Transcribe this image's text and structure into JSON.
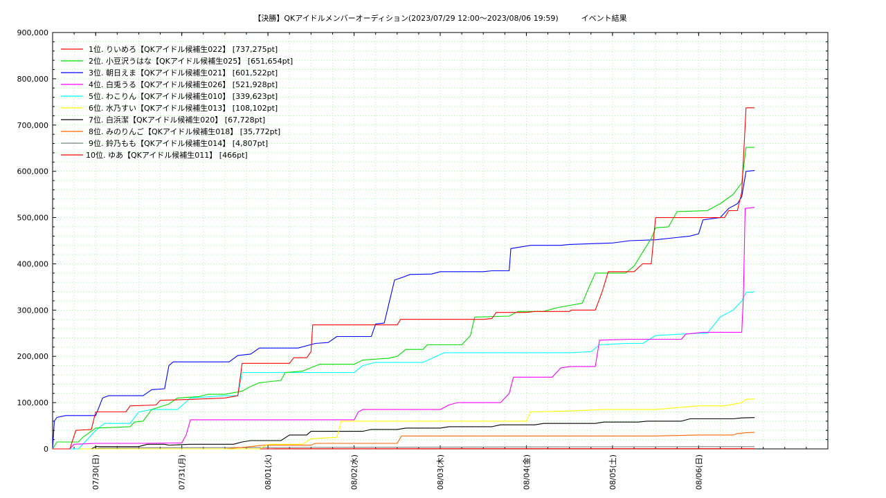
{
  "chart_data": {
    "type": "line",
    "title": "【決勝】QKアイドルメンバーオーディション(2023/07/29 12:00～2023/08/06 19:59)　　　イベント結果",
    "xlabel": "",
    "ylabel": "",
    "ylim": [
      0,
      900000
    ],
    "xlim": [
      0,
      9.0
    ],
    "grid": true,
    "legend_position": "top-left",
    "y_ticks": [
      "0",
      "100,000",
      "200,000",
      "300,000",
      "400,000",
      "500,000",
      "600,000",
      "700,000",
      "800,000",
      "900,000"
    ],
    "y_tick_values": [
      0,
      100000,
      200000,
      300000,
      400000,
      500000,
      600000,
      700000,
      800000,
      900000
    ],
    "x_ticks": [
      "07/30(日)",
      "07/31(月)",
      "08/01(火)",
      "08/02(水)",
      "08/03(木)",
      "08/04(金)",
      "08/05(土)",
      "08/06(日)"
    ],
    "x_tick_values": [
      0.5,
      1.5,
      2.5,
      3.5,
      4.5,
      5.5,
      6.5,
      7.5
    ],
    "series": [
      {
        "name": "1位. りいめろ【QKアイドル候補生022】 [737,275pt]",
        "color": "#ff0000",
        "points": [
          [
            0.0,
            0
          ],
          [
            0.2,
            0
          ],
          [
            0.27,
            40000
          ],
          [
            0.45,
            42000
          ],
          [
            0.5,
            80000
          ],
          [
            0.85,
            80000
          ],
          [
            0.9,
            93000
          ],
          [
            1.2,
            95000
          ],
          [
            1.25,
            105000
          ],
          [
            1.6,
            107000
          ],
          [
            2.0,
            110000
          ],
          [
            2.15,
            115000
          ],
          [
            2.2,
            185000
          ],
          [
            2.75,
            185000
          ],
          [
            2.8,
            197000
          ],
          [
            2.95,
            197000
          ],
          [
            3.0,
            210000
          ],
          [
            3.02,
            268000
          ],
          [
            4.0,
            268000
          ],
          [
            4.04,
            280000
          ],
          [
            5.0,
            280000
          ],
          [
            5.1,
            282000
          ],
          [
            5.15,
            295000
          ],
          [
            5.5,
            295000
          ],
          [
            5.6,
            297000
          ],
          [
            6.0,
            297000
          ],
          [
            6.02,
            300000
          ],
          [
            6.3,
            300000
          ],
          [
            6.38,
            340000
          ],
          [
            6.45,
            383000
          ],
          [
            6.75,
            383000
          ],
          [
            6.85,
            400000
          ],
          [
            6.95,
            400000
          ],
          [
            7.0,
            500000
          ],
          [
            7.4,
            500000
          ],
          [
            7.8,
            500000
          ],
          [
            7.85,
            515000
          ],
          [
            7.95,
            515000
          ],
          [
            8.0,
            555000
          ],
          [
            8.05,
            737275
          ],
          [
            8.15,
            737275
          ]
        ]
      },
      {
        "name": "2位. 小豆沢うはな【QKアイドル候補生025】 [651,654pt]",
        "color": "#00e000",
        "points": [
          [
            0.0,
            0
          ],
          [
            0.05,
            15000
          ],
          [
            0.3,
            15000
          ],
          [
            0.35,
            25000
          ],
          [
            0.5,
            45000
          ],
          [
            0.9,
            48000
          ],
          [
            0.95,
            58000
          ],
          [
            1.05,
            60000
          ],
          [
            1.15,
            85000
          ],
          [
            1.35,
            97000
          ],
          [
            1.45,
            110000
          ],
          [
            1.7,
            113000
          ],
          [
            1.8,
            118000
          ],
          [
            2.0,
            118000
          ],
          [
            2.2,
            125000
          ],
          [
            2.3,
            135000
          ],
          [
            2.4,
            143000
          ],
          [
            2.65,
            148000
          ],
          [
            2.7,
            165000
          ],
          [
            2.9,
            168000
          ],
          [
            3.1,
            183000
          ],
          [
            3.5,
            183000
          ],
          [
            3.6,
            192000
          ],
          [
            3.9,
            196000
          ],
          [
            4.0,
            200000
          ],
          [
            4.1,
            215000
          ],
          [
            4.3,
            215000
          ],
          [
            4.35,
            225000
          ],
          [
            4.75,
            225000
          ],
          [
            4.85,
            245000
          ],
          [
            4.9,
            285000
          ],
          [
            5.3,
            287000
          ],
          [
            5.4,
            297000
          ],
          [
            5.7,
            297000
          ],
          [
            5.85,
            305000
          ],
          [
            6.15,
            315000
          ],
          [
            6.2,
            338000
          ],
          [
            6.3,
            380000
          ],
          [
            6.65,
            380000
          ],
          [
            6.75,
            395000
          ],
          [
            6.85,
            425000
          ],
          [
            6.95,
            455000
          ],
          [
            7.0,
            478000
          ],
          [
            7.15,
            480000
          ],
          [
            7.25,
            513000
          ],
          [
            7.6,
            515000
          ],
          [
            7.75,
            530000
          ],
          [
            7.9,
            550000
          ],
          [
            8.0,
            575000
          ],
          [
            8.05,
            651654
          ],
          [
            8.15,
            651654
          ]
        ]
      },
      {
        "name": "3位. 朝日えま【QKアイドル候補生021】 [601,522pt]",
        "color": "#0000ff",
        "points": [
          [
            0.0,
            0
          ],
          [
            0.02,
            60000
          ],
          [
            0.05,
            68000
          ],
          [
            0.15,
            72000
          ],
          [
            0.5,
            72000
          ],
          [
            0.58,
            110000
          ],
          [
            0.65,
            115000
          ],
          [
            1.05,
            115000
          ],
          [
            1.15,
            128000
          ],
          [
            1.3,
            130000
          ],
          [
            1.35,
            180000
          ],
          [
            1.4,
            188000
          ],
          [
            2.05,
            188000
          ],
          [
            2.15,
            202000
          ],
          [
            2.3,
            205000
          ],
          [
            2.4,
            218000
          ],
          [
            2.85,
            218000
          ],
          [
            3.05,
            228000
          ],
          [
            3.2,
            230000
          ],
          [
            3.3,
            243000
          ],
          [
            3.7,
            243000
          ],
          [
            3.75,
            270000
          ],
          [
            3.85,
            272000
          ],
          [
            3.97,
            365000
          ],
          [
            4.05,
            370000
          ],
          [
            4.15,
            377000
          ],
          [
            4.4,
            378000
          ],
          [
            4.5,
            383000
          ],
          [
            5.0,
            383000
          ],
          [
            5.1,
            385000
          ],
          [
            5.3,
            385000
          ],
          [
            5.32,
            433000
          ],
          [
            5.45,
            437000
          ],
          [
            5.55,
            440000
          ],
          [
            5.9,
            440000
          ],
          [
            6.0,
            442000
          ],
          [
            6.5,
            445000
          ],
          [
            6.7,
            450000
          ],
          [
            7.0,
            452000
          ],
          [
            7.2,
            456000
          ],
          [
            7.4,
            460000
          ],
          [
            7.5,
            465000
          ],
          [
            7.55,
            495000
          ],
          [
            7.75,
            500000
          ],
          [
            7.85,
            520000
          ],
          [
            7.95,
            530000
          ],
          [
            8.0,
            545000
          ],
          [
            8.05,
            600000
          ],
          [
            8.15,
            601522
          ]
        ]
      },
      {
        "name": "4位. 白兎うる【QKアイドル候補生026】 [521,928pt]",
        "color": "#ff00ff",
        "points": [
          [
            0.0,
            0
          ],
          [
            0.2,
            0
          ],
          [
            0.25,
            10000
          ],
          [
            0.5,
            12000
          ],
          [
            1.0,
            12000
          ],
          [
            1.5,
            13000
          ],
          [
            1.55,
            30000
          ],
          [
            1.6,
            63000
          ],
          [
            3.5,
            63000
          ],
          [
            3.55,
            80000
          ],
          [
            3.6,
            85000
          ],
          [
            4.5,
            85000
          ],
          [
            4.6,
            95000
          ],
          [
            4.7,
            100000
          ],
          [
            5.2,
            100000
          ],
          [
            5.3,
            120000
          ],
          [
            5.35,
            155000
          ],
          [
            5.8,
            155000
          ],
          [
            5.9,
            175000
          ],
          [
            6.0,
            178000
          ],
          [
            6.3,
            178000
          ],
          [
            6.35,
            235000
          ],
          [
            6.7,
            237000
          ],
          [
            7.3,
            237000
          ],
          [
            7.35,
            248000
          ],
          [
            7.55,
            252000
          ],
          [
            8.0,
            252000
          ],
          [
            8.02,
            330000
          ],
          [
            8.04,
            520000
          ],
          [
            8.15,
            521928
          ]
        ]
      },
      {
        "name": "5位. わこりん【QKアイドル候補生010】 [339,623pt]",
        "color": "#00ffff",
        "points": [
          [
            0.0,
            0
          ],
          [
            0.3,
            0
          ],
          [
            0.4,
            20000
          ],
          [
            0.5,
            40000
          ],
          [
            0.6,
            55000
          ],
          [
            0.9,
            55000
          ],
          [
            1.0,
            80000
          ],
          [
            1.15,
            85000
          ],
          [
            1.45,
            85000
          ],
          [
            1.6,
            110000
          ],
          [
            2.0,
            115000
          ],
          [
            2.15,
            115000
          ],
          [
            2.2,
            165000
          ],
          [
            3.0,
            165000
          ],
          [
            3.5,
            165000
          ],
          [
            3.6,
            180000
          ],
          [
            3.75,
            187000
          ],
          [
            4.3,
            187000
          ],
          [
            4.45,
            200000
          ],
          [
            4.55,
            208000
          ],
          [
            5.3,
            208000
          ],
          [
            6.0,
            208000
          ],
          [
            6.25,
            210000
          ],
          [
            6.35,
            225000
          ],
          [
            6.65,
            228000
          ],
          [
            6.85,
            228000
          ],
          [
            7.0,
            245000
          ],
          [
            7.3,
            248000
          ],
          [
            7.5,
            250000
          ],
          [
            7.6,
            250000
          ],
          [
            7.75,
            285000
          ],
          [
            7.9,
            300000
          ],
          [
            8.0,
            320000
          ],
          [
            8.05,
            338000
          ],
          [
            8.15,
            339623
          ]
        ]
      },
      {
        "name": "6位. 水乃すい【QKアイドル候補生013】 [108,102pt]",
        "color": "#ffff00",
        "points": [
          [
            0.0,
            0
          ],
          [
            1.5,
            0
          ],
          [
            2.0,
            0
          ],
          [
            2.4,
            0
          ],
          [
            2.5,
            10000
          ],
          [
            2.9,
            10000
          ],
          [
            3.0,
            22000
          ],
          [
            3.3,
            25000
          ],
          [
            3.35,
            60000
          ],
          [
            4.0,
            60000
          ],
          [
            5.5,
            60000
          ],
          [
            5.55,
            80000
          ],
          [
            6.0,
            82000
          ],
          [
            6.4,
            85000
          ],
          [
            7.0,
            85000
          ],
          [
            7.3,
            90000
          ],
          [
            7.5,
            93000
          ],
          [
            7.8,
            93000
          ],
          [
            8.0,
            100000
          ],
          [
            8.05,
            107000
          ],
          [
            8.15,
            108102
          ]
        ]
      },
      {
        "name": "7位. 白浜潔【QKアイドル候補生020】 [67,728pt]",
        "color": "#000000",
        "points": [
          [
            0.0,
            0
          ],
          [
            0.45,
            0
          ],
          [
            0.5,
            5000
          ],
          [
            1.0,
            5000
          ],
          [
            1.1,
            10000
          ],
          [
            1.3,
            10000
          ],
          [
            1.35,
            8000
          ],
          [
            1.6,
            10000
          ],
          [
            2.1,
            10000
          ],
          [
            2.2,
            15000
          ],
          [
            2.3,
            18000
          ],
          [
            2.65,
            18000
          ],
          [
            2.75,
            30000
          ],
          [
            2.95,
            30000
          ],
          [
            3.0,
            38000
          ],
          [
            3.6,
            38000
          ],
          [
            3.7,
            42000
          ],
          [
            4.0,
            42000
          ],
          [
            4.1,
            45000
          ],
          [
            4.5,
            45000
          ],
          [
            4.6,
            48000
          ],
          [
            5.1,
            48000
          ],
          [
            5.2,
            52000
          ],
          [
            5.6,
            52000
          ],
          [
            5.7,
            55000
          ],
          [
            6.3,
            55000
          ],
          [
            6.4,
            58000
          ],
          [
            6.8,
            58000
          ],
          [
            6.9,
            60000
          ],
          [
            7.3,
            60000
          ],
          [
            7.4,
            65000
          ],
          [
            7.9,
            65000
          ],
          [
            8.0,
            67000
          ],
          [
            8.15,
            67728
          ]
        ]
      },
      {
        "name": "8位. みのりんご【QKアイドル候補生018】 [35,772pt]",
        "color": "#ff6600",
        "points": [
          [
            0.0,
            0
          ],
          [
            2.0,
            0
          ],
          [
            2.3,
            5000
          ],
          [
            2.45,
            8000
          ],
          [
            3.0,
            8000
          ],
          [
            3.05,
            12000
          ],
          [
            3.5,
            12000
          ],
          [
            4.0,
            12000
          ],
          [
            4.05,
            28000
          ],
          [
            5.0,
            28000
          ],
          [
            6.0,
            28000
          ],
          [
            7.0,
            28000
          ],
          [
            7.5,
            30000
          ],
          [
            7.9,
            30000
          ],
          [
            7.95,
            33000
          ],
          [
            8.05,
            35000
          ],
          [
            8.15,
            35772
          ]
        ]
      },
      {
        "name": "9位. 鈴乃もも【QKアイドル候補生014】 [4,807pt]",
        "color": "#808080",
        "points": [
          [
            0.0,
            0
          ],
          [
            0.5,
            0
          ],
          [
            0.55,
            2000
          ],
          [
            1.5,
            2500
          ],
          [
            2.6,
            3000
          ],
          [
            3.5,
            3500
          ],
          [
            5.0,
            4000
          ],
          [
            6.5,
            4500
          ],
          [
            8.0,
            4800
          ],
          [
            8.15,
            4807
          ]
        ]
      },
      {
        "name": "10位. ゆあ【QKアイドル候補生011】 [466pt]",
        "color": "#ff0000",
        "points": [
          [
            0.0,
            0
          ],
          [
            2.5,
            0
          ],
          [
            2.6,
            300
          ],
          [
            5.0,
            400
          ],
          [
            8.15,
            466
          ]
        ]
      }
    ]
  }
}
